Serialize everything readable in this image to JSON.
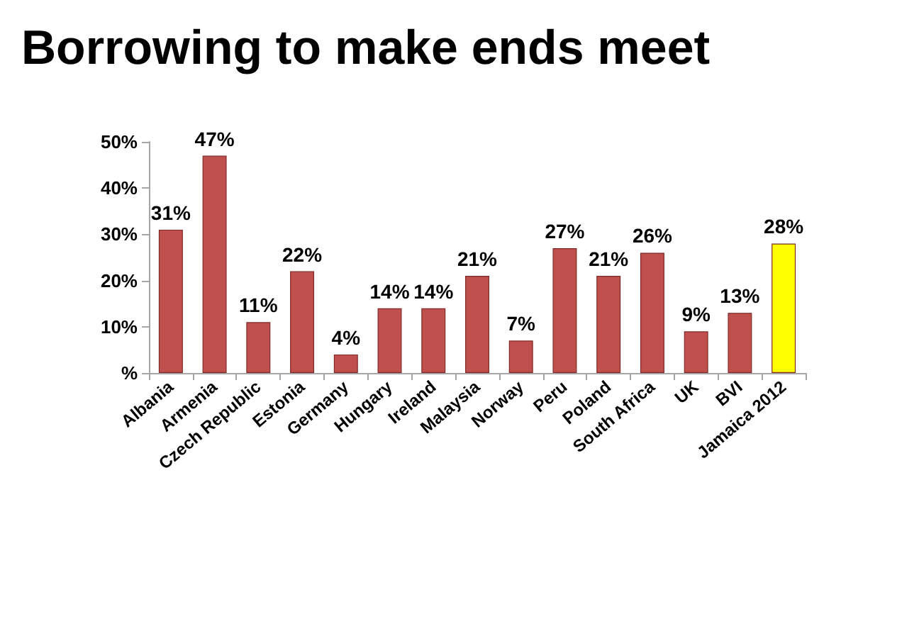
{
  "chart_data": {
    "type": "bar",
    "title": "Borrowing to make ends meet",
    "categories": [
      "Albania",
      "Armenia",
      "Czech Republic",
      "Estonia",
      "Germany",
      "Hungary",
      "Ireland",
      "Malaysia",
      "Norway",
      "Peru",
      "Poland",
      "South Africa",
      "UK",
      "BVI",
      "Jamaica 2012"
    ],
    "values": [
      31,
      47,
      11,
      22,
      4,
      14,
      14,
      21,
      7,
      27,
      21,
      26,
      9,
      13,
      28
    ],
    "colors": [
      "#c0504d",
      "#c0504d",
      "#c0504d",
      "#c0504d",
      "#c0504d",
      "#c0504d",
      "#c0504d",
      "#c0504d",
      "#c0504d",
      "#c0504d",
      "#c0504d",
      "#c0504d",
      "#c0504d",
      "#c0504d",
      "#ffff00"
    ],
    "value_labels": [
      "31%",
      "47%",
      "11%",
      "22%",
      "4%",
      "14%",
      "14%",
      "21%",
      "7%",
      "27%",
      "21%",
      "26%",
      "9%",
      "13%",
      "28%"
    ],
    "ylim": [
      0,
      50
    ],
    "yticks": [
      {
        "value": 0,
        "label": "%"
      },
      {
        "value": 10,
        "label": "10%"
      },
      {
        "value": 20,
        "label": "20%"
      },
      {
        "value": 30,
        "label": "30%"
      },
      {
        "value": 40,
        "label": "40%"
      },
      {
        "value": 50,
        "label": "50%"
      }
    ],
    "grid": false
  }
}
